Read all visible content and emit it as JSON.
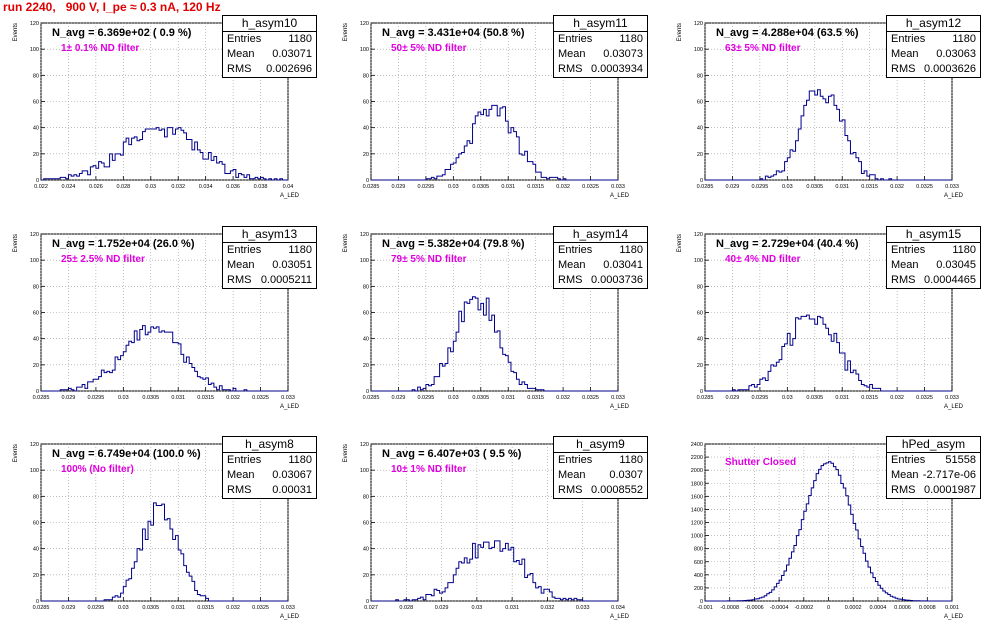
{
  "title": "run 2240,   900 V, I_pe ≈ 0.3 nA, 120 Hz",
  "chart_data": [
    {
      "type": "histogram",
      "name": "h_asym10",
      "navg": "N_avg = 6.369e+02 ( 0.9 %)",
      "filter": "1± 0.1% ND filter",
      "entries": "1180",
      "mean": "0.03071",
      "rms": "0.002696",
      "xlim": [
        0.022,
        0.04
      ],
      "xticks": [
        "0.022",
        "0.024",
        "0.026",
        "0.028",
        "0.03",
        "0.032",
        "0.034",
        "0.036",
        "0.038",
        "0.04"
      ],
      "ylim": [
        0,
        120
      ],
      "yticks": [
        "0",
        "20",
        "40",
        "60",
        "80",
        "100",
        "120"
      ],
      "xlabel": "A_LED",
      "ylabel": "Events",
      "peak": 40,
      "sigma_scale": 1.0,
      "mu": 0.03071,
      "sd": 0.002696,
      "bins": 90
    },
    {
      "type": "histogram",
      "name": "h_asym11",
      "navg": "N_avg = 3.431e+04 (50.8 %)",
      "filter": "50± 5% ND filter",
      "entries": "1180",
      "mean": "0.03073",
      "rms": "0.0003934",
      "xlim": [
        0.0285,
        0.033
      ],
      "xticks": [
        "0.0285",
        "0.029",
        "0.0295",
        "0.03",
        "0.0305",
        "0.031",
        "0.0315",
        "0.032",
        "0.0325",
        "0.033"
      ],
      "ylim": [
        0,
        120
      ],
      "yticks": [
        "0",
        "20",
        "40",
        "60",
        "80",
        "100",
        "120"
      ],
      "xlabel": "A_LED",
      "ylabel": "Events",
      "peak": 57,
      "mu": 0.03073,
      "sd": 0.0003934,
      "bins": 90
    },
    {
      "type": "histogram",
      "name": "h_asym12",
      "navg": "N_avg = 4.288e+04 (63.5 %)",
      "filter": "63± 5% ND filter",
      "entries": "1180",
      "mean": "0.03063",
      "rms": "0.0003626",
      "xlim": [
        0.0285,
        0.033
      ],
      "xticks": [
        "0.0285",
        "0.029",
        "0.0295",
        "0.03",
        "0.0305",
        "0.031",
        "0.0315",
        "0.032",
        "0.0325",
        "0.033"
      ],
      "ylim": [
        0,
        120
      ],
      "yticks": [
        "0",
        "20",
        "40",
        "60",
        "80",
        "100",
        "120"
      ],
      "xlabel": "A_LED",
      "ylabel": "Events",
      "peak": 70,
      "mu": 0.03063,
      "sd": 0.0003626,
      "bins": 90
    },
    {
      "type": "histogram",
      "name": "h_asym13",
      "navg": "N_avg = 1.752e+04 (26.0 %)",
      "filter": "25± 2.5% ND filter",
      "entries": "1180",
      "mean": "0.03051",
      "rms": "0.0005211",
      "xlim": [
        0.0285,
        0.033
      ],
      "xticks": [
        "0.0285",
        "0.029",
        "0.0295",
        "0.03",
        "0.0305",
        "0.031",
        "0.0315",
        "0.032",
        "0.0325",
        "0.033"
      ],
      "ylim": [
        0,
        120
      ],
      "yticks": [
        "0",
        "20",
        "40",
        "60",
        "80",
        "100",
        "120"
      ],
      "xlabel": "A_LED",
      "ylabel": "Events",
      "peak": 50,
      "mu": 0.03051,
      "sd": 0.0005211,
      "bins": 90
    },
    {
      "type": "histogram",
      "name": "h_asym14",
      "navg": "N_avg = 5.382e+04 (79.8 %)",
      "filter": "79± 5% ND filter",
      "entries": "1180",
      "mean": "0.03041",
      "rms": "0.0003736",
      "xlim": [
        0.0285,
        0.033
      ],
      "xticks": [
        "0.0285",
        "0.029",
        "0.0295",
        "0.03",
        "0.0305",
        "0.031",
        "0.0315",
        "0.032",
        "0.0325",
        "0.033"
      ],
      "ylim": [
        0,
        120
      ],
      "yticks": [
        "0",
        "20",
        "40",
        "60",
        "80",
        "100",
        "120"
      ],
      "xlabel": "A_LED",
      "ylabel": "Events",
      "peak": 73,
      "mu": 0.03041,
      "sd": 0.0003736,
      "bins": 90
    },
    {
      "type": "histogram",
      "name": "h_asym15",
      "navg": "N_avg = 2.729e+04 (40.4 %)",
      "filter": "40± 4% ND filter",
      "entries": "1180",
      "mean": "0.03045",
      "rms": "0.0004465",
      "xlim": [
        0.0285,
        0.033
      ],
      "xticks": [
        "0.0285",
        "0.029",
        "0.0295",
        "0.03",
        "0.0305",
        "0.031",
        "0.0315",
        "0.032",
        "0.0325",
        "0.033"
      ],
      "ylim": [
        0,
        120
      ],
      "yticks": [
        "0",
        "20",
        "40",
        "60",
        "80",
        "100",
        "120"
      ],
      "xlabel": "A_LED",
      "ylabel": "Events",
      "peak": 58,
      "mu": 0.03045,
      "sd": 0.0004465,
      "bins": 90
    },
    {
      "type": "histogram",
      "name": "h_asym8",
      "navg": "N_avg = 6.749e+04 (100.0 %)",
      "filter": "100% (No filter)",
      "entries": "1180",
      "mean": "0.03067",
      "rms": "0.00031",
      "xlim": [
        0.0285,
        0.033
      ],
      "xticks": [
        "0.0285",
        "0.029",
        "0.0295",
        "0.03",
        "0.0305",
        "0.031",
        "0.0315",
        "0.032",
        "0.0325",
        "0.033"
      ],
      "ylim": [
        0,
        120
      ],
      "yticks": [
        "0",
        "20",
        "40",
        "60",
        "80",
        "100",
        "120"
      ],
      "xlabel": "A_LED",
      "ylabel": "Events",
      "peak": 75,
      "mu": 0.03067,
      "sd": 0.00031,
      "bins": 90
    },
    {
      "type": "histogram",
      "name": "h_asym9",
      "navg": "N_avg = 6.407e+03 ( 9.5 %)",
      "filter": "10± 1% ND filter",
      "entries": "1180",
      "mean": "0.0307",
      "rms": "0.0008552",
      "xlim": [
        0.027,
        0.0345
      ],
      "xticks": [
        "0.027",
        "0.028",
        "0.029",
        "0.03",
        "0.031",
        "0.032",
        "0.033",
        "0.034"
      ],
      "ylim": [
        0,
        120
      ],
      "yticks": [
        "0",
        "20",
        "40",
        "60",
        "80",
        "100",
        "120"
      ],
      "xlabel": "A_LED",
      "ylabel": "Events",
      "peak": 47,
      "mu": 0.0307,
      "sd": 0.0008552,
      "bins": 90
    },
    {
      "type": "histogram",
      "name": "hPed_asym",
      "navg": "",
      "filter": "Shutter Closed",
      "entries": "51558",
      "mean": "-2.717e-06",
      "rms": "0.0001987",
      "xlim": [
        -0.001,
        0.001
      ],
      "xticks": [
        "-0.001",
        "-0.0008",
        "-0.0006",
        "-0.0004",
        "-0.0002",
        "0",
        "0.0002",
        "0.0004",
        "0.0006",
        "0.0008",
        "0.001"
      ],
      "ylim": [
        0,
        2400
      ],
      "yticks": [
        "0",
        "200",
        "400",
        "600",
        "800",
        "1000",
        "1200",
        "1400",
        "1600",
        "1800",
        "2000",
        "2200",
        "2400"
      ],
      "xlabel": "A_LED",
      "ylabel": "",
      "peak": 2130,
      "mu": -2.717e-06,
      "sd": 0.0001987,
      "bins": 100
    }
  ],
  "labels": {
    "entries": "Entries",
    "mean": "Mean",
    "rms": "RMS"
  },
  "colors": {
    "hist": "#00008b",
    "filter_text": "#e000e0",
    "title": "#e00000"
  }
}
